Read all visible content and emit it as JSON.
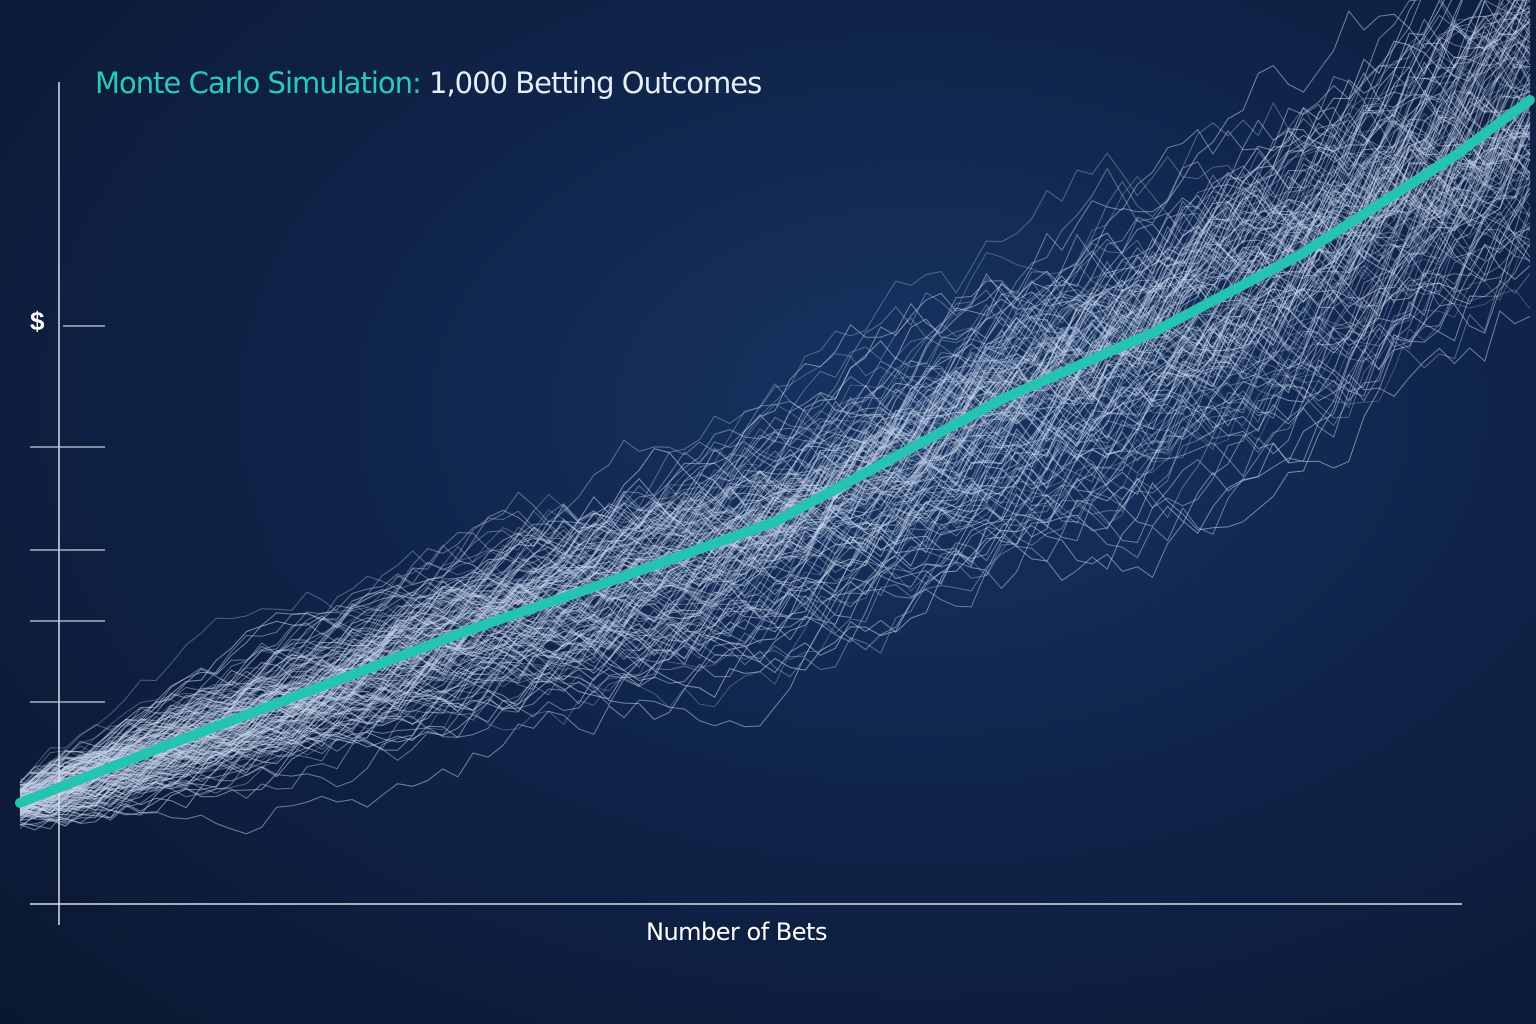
{
  "chart_data": {
    "type": "line",
    "title_prefix": "Monte Carlo Simulation:",
    "title_suffix": "1,000 Betting Outcomes",
    "xlabel": "Number of Bets",
    "ylabel": "$",
    "grid": false,
    "legend": "none",
    "xlim": [
      0,
      1000
    ],
    "ylim": [
      0,
      100
    ],
    "simulated_paths": 1000,
    "series": [
      {
        "role": "mean",
        "color": "#25c4b2",
        "x": [
          0,
          100,
          200,
          300,
          384,
          500,
          649,
          750,
          848,
          950,
          1000
        ],
        "y": [
          12.3,
          19.5,
          26.5,
          33.5,
          38.8,
          46.5,
          61.3,
          69.5,
          79,
          91,
          97.8
        ]
      }
    ],
    "path_color": "#c9d8ee",
    "colors": {
      "title_accent": "#2cc9b8",
      "axis": "#d8dee8"
    }
  }
}
